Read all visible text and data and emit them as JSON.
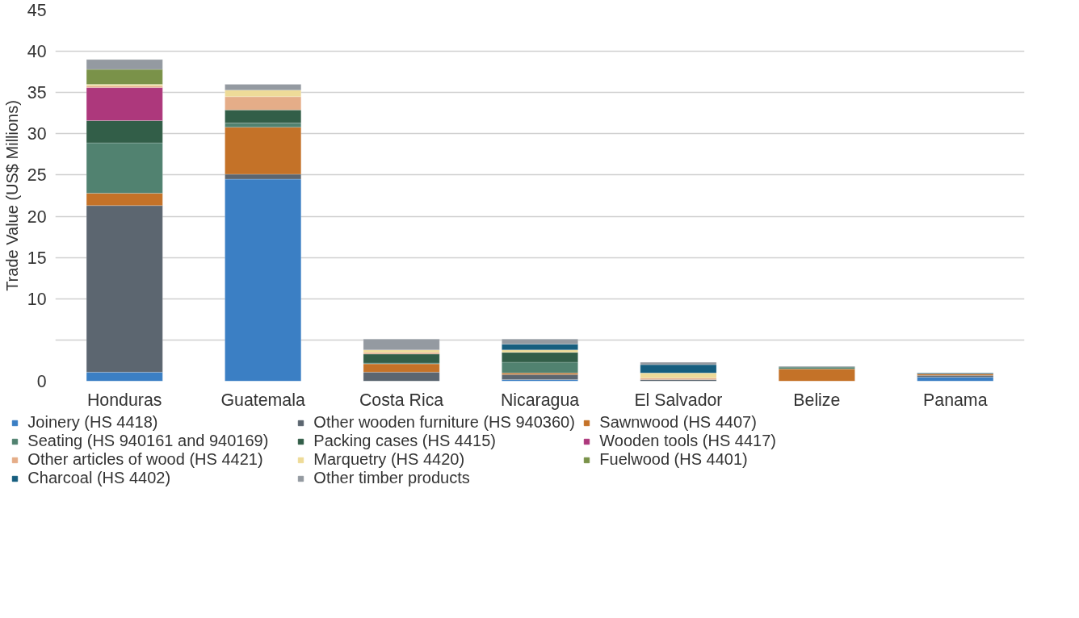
{
  "chart_data": {
    "type": "bar",
    "stacked": true,
    "ylabel": "Trade Value (US$ Millions)",
    "categories": [
      "Honduras",
      "Guatemala",
      "Costa Rica",
      "Nicaragua",
      "El Salvador",
      "Belize",
      "Panama"
    ],
    "series": [
      {
        "name": "Joinery (HS 4418)",
        "color": "#3b7fc4",
        "values": [
          1.1,
          24.5,
          0,
          0.2,
          0,
          0,
          0.5
        ]
      },
      {
        "name": "Other wooden furniture (HS 940360)",
        "color": "#5c6670",
        "values": [
          20.2,
          0.6,
          1.1,
          0.6,
          0.2,
          0,
          0.2
        ]
      },
      {
        "name": "Sawnwood (HS 4407)",
        "color": "#c47228",
        "values": [
          1.5,
          5.7,
          1.0,
          0.2,
          0,
          1.5,
          0.2
        ]
      },
      {
        "name": "Seating (HS 940161 and 940169)",
        "color": "#518270",
        "values": [
          6.1,
          0.5,
          0.1,
          1.3,
          0,
          0.2,
          0
        ]
      },
      {
        "name": "Packing cases (HS 4415)",
        "color": "#325e48",
        "values": [
          2.7,
          1.6,
          1.1,
          1.2,
          0,
          0,
          0
        ]
      },
      {
        "name": "Wooden tools (HS 4417)",
        "color": "#ad387c",
        "values": [
          4.0,
          0,
          0,
          0,
          0,
          0,
          0
        ]
      },
      {
        "name": "Other articles of wood (HS 4421)",
        "color": "#e5ad88",
        "values": [
          0.2,
          1.6,
          0.2,
          0,
          0.2,
          0,
          0
        ]
      },
      {
        "name": "Marquetry (HS 4420)",
        "color": "#eedb98",
        "values": [
          0.2,
          0.8,
          0.3,
          0.3,
          0.6,
          0,
          0
        ]
      },
      {
        "name": "Fuelwood (HS 4401)",
        "color": "#7a9249",
        "values": [
          1.8,
          0,
          0,
          0,
          0,
          0,
          0
        ]
      },
      {
        "name": "Charcoal (HS 4402)",
        "color": "#165e7f",
        "values": [
          0,
          0,
          0,
          0.7,
          1.0,
          0,
          0.1
        ]
      },
      {
        "name": "Other timber products",
        "color": "#949aa1",
        "values": [
          1.2,
          0.7,
          1.3,
          0.6,
          0.3,
          0.1,
          0
        ]
      }
    ],
    "ylim": [
      0,
      45
    ],
    "yticks": [
      0,
      {
        "value": 5,
        "label": null
      },
      10,
      15,
      20,
      25,
      30,
      35,
      40,
      45
    ],
    "grid": "y",
    "legend": "bottom"
  }
}
